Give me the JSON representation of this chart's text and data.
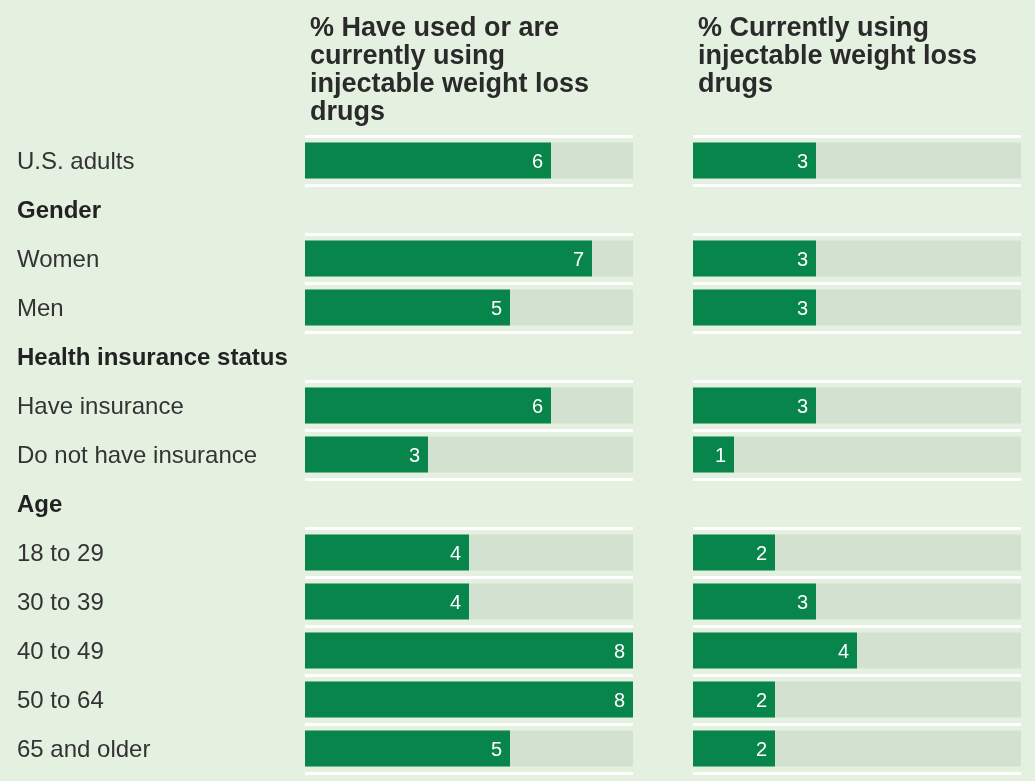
{
  "chart_data": [
    {
      "type": "bar",
      "orientation": "horizontal",
      "title": "% Have used or are currently using injectable weight loss drugs",
      "categories": [
        "U.S. adults",
        "Gender",
        "Women",
        "Men",
        "Health insurance status",
        "Have insurance",
        "Do not have insurance",
        "Age",
        "18 to 29",
        "30 to 39",
        "40 to 49",
        "50 to 64",
        "65 and older"
      ],
      "values": [
        6,
        null,
        7,
        5,
        null,
        6,
        3,
        null,
        4,
        4,
        8,
        8,
        5
      ],
      "color": "#08854a",
      "xlim": [
        0,
        8
      ],
      "data_labels": true,
      "tick_labels": "y",
      "grid": "y"
    },
    {
      "type": "bar",
      "orientation": "horizontal",
      "title": "% Currently using injectable weight loss drugs",
      "categories": [
        null,
        null,
        null,
        null,
        null,
        null,
        null,
        null,
        null,
        null,
        null,
        null,
        null
      ],
      "values": [
        3,
        null,
        3,
        3,
        null,
        3,
        1,
        null,
        2,
        3,
        4,
        2,
        2
      ],
      "color": "#08854a",
      "xlim": [
        0,
        8
      ],
      "data_labels": true,
      "grid": "y"
    }
  ]
}
